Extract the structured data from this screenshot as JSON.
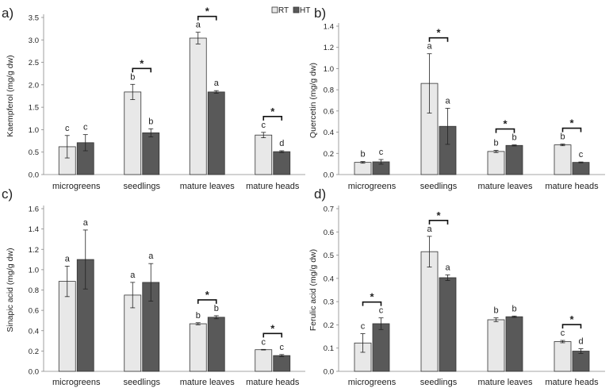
{
  "legend": {
    "rt_label": "RT",
    "ht_label": "HT",
    "rt_color": "#e8e8e8",
    "ht_color": "#595959"
  },
  "chart_data": [
    {
      "type": "bar",
      "panel_label": "a)",
      "ylabel": "Kaempferol (mg/g dw)",
      "categories": [
        "microgreens",
        "seedlings",
        "mature leaves",
        "mature heads"
      ],
      "ylim": [
        0,
        3.5
      ],
      "yticks": [
        "0.0",
        "0.5",
        "1.0",
        "1.5",
        "2.0",
        "2.5",
        "3.0",
        "3.5"
      ],
      "series": [
        {
          "name": "RT",
          "values": [
            0.62,
            1.84,
            3.04,
            0.88
          ],
          "errors": [
            0.25,
            0.17,
            0.13,
            0.06
          ],
          "letters": [
            "c",
            "b",
            "a",
            "c"
          ]
        },
        {
          "name": "HT",
          "values": [
            0.71,
            0.93,
            1.84,
            0.51
          ],
          "errors": [
            0.18,
            0.09,
            0.03,
            0.02
          ],
          "letters": [
            "c",
            "b",
            "a",
            "d"
          ]
        }
      ],
      "significance": [
        false,
        true,
        true,
        true
      ],
      "significance_label": "*",
      "legend_position": "top-right"
    },
    {
      "type": "bar",
      "panel_label": "b)",
      "ylabel": "Quercetin (mg/g dw)",
      "categories": [
        "microgreens",
        "seedlings",
        "mature leaves",
        "mature heads"
      ],
      "ylim": [
        0,
        1.4
      ],
      "yticks": [
        "0.0",
        "0.2",
        "0.4",
        "0.6",
        "0.8",
        "1.0",
        "1.2",
        "1.4"
      ],
      "series": [
        {
          "name": "RT",
          "values": [
            0.115,
            0.86,
            0.218,
            0.28
          ],
          "errors": [
            0.008,
            0.28,
            0.01,
            0.008
          ],
          "letters": [
            "b",
            "a",
            "b",
            "b"
          ]
        },
        {
          "name": "HT",
          "values": [
            0.12,
            0.455,
            0.275,
            0.115
          ],
          "errors": [
            0.022,
            0.17,
            0.005,
            0.004
          ],
          "letters": [
            "c",
            "a",
            "b",
            "c"
          ]
        }
      ],
      "significance": [
        false,
        true,
        true,
        true
      ],
      "significance_label": "*"
    },
    {
      "type": "bar",
      "panel_label": "c)",
      "ylabel": "Sinapic acid (mg/g dw)",
      "categories": [
        "microgreens",
        "seedlings",
        "mature leaves",
        "mature heads"
      ],
      "ylim": [
        0,
        1.6
      ],
      "yticks": [
        "0.0",
        "0.2",
        "0.4",
        "0.6",
        "0.8",
        "1.0",
        "1.2",
        "1.4",
        "1.6"
      ],
      "series": [
        {
          "name": "RT",
          "values": [
            0.885,
            0.75,
            0.468,
            0.213
          ],
          "errors": [
            0.15,
            0.125,
            0.01,
            0.003
          ],
          "letters": [
            "a",
            "a",
            "b",
            "c"
          ]
        },
        {
          "name": "HT",
          "values": [
            1.1,
            0.875,
            0.532,
            0.155
          ],
          "errors": [
            0.29,
            0.185,
            0.015,
            0.01
          ],
          "letters": [
            "a",
            "a",
            "b",
            "c"
          ]
        }
      ],
      "significance": [
        false,
        false,
        true,
        true
      ],
      "significance_label": "*"
    },
    {
      "type": "bar",
      "panel_label": "d)",
      "ylabel": "Ferulic acid (mg/g dw)",
      "categories": [
        "microgreens",
        "seedlings",
        "mature leaves",
        "mature heads"
      ],
      "ylim": [
        0,
        0.7
      ],
      "yticks": [
        "0.0",
        "0.1",
        "0.2",
        "0.3",
        "0.4",
        "0.5",
        "0.6",
        "0.7"
      ],
      "series": [
        {
          "name": "RT",
          "values": [
            0.122,
            0.515,
            0.222,
            0.128
          ],
          "errors": [
            0.04,
            0.066,
            0.008,
            0.005
          ],
          "letters": [
            "c",
            "a",
            "b",
            "c"
          ]
        },
        {
          "name": "HT",
          "values": [
            0.205,
            0.403,
            0.235,
            0.087
          ],
          "errors": [
            0.025,
            0.012,
            0.003,
            0.01
          ],
          "letters": [
            "c",
            "a",
            "b",
            "d"
          ]
        }
      ],
      "significance": [
        true,
        true,
        false,
        true
      ],
      "significance_label": "*"
    }
  ]
}
